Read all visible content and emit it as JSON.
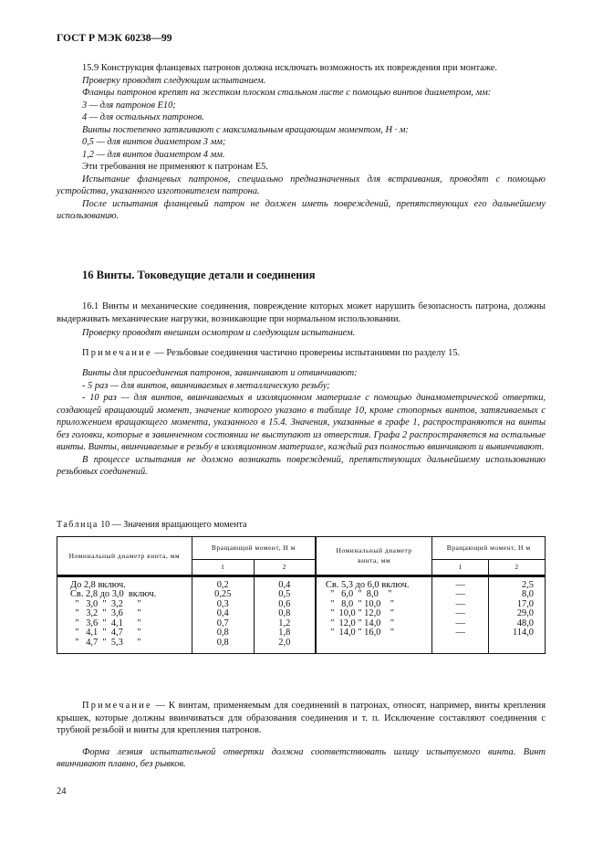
{
  "header": "ГОСТ Р МЭК 60238—99",
  "s159": [
    {
      "t": "15.9 Конструкция фланцевых патронов должна исключать возможность их повреждения при монтаже.",
      "i": false,
      "ind": true
    },
    {
      "t": "Проверку проводят следующим испытанием.",
      "i": true,
      "ind": true
    },
    {
      "t": "Фланцы патронов крепят на жестком плоском стальном листе с помощью винтов диаметром, мм:",
      "i": true,
      "ind": true
    },
    {
      "t": "3 — для патронов Е10;",
      "i": true,
      "ind": true
    },
    {
      "t": "4 — для остальных патронов.",
      "i": true,
      "ind": true
    },
    {
      "t": "Винты постепенно затягивают с максимальным вращающим моментом, Н · м:",
      "i": true,
      "ind": true
    },
    {
      "t": "0,5 — для винтов диаметром 3 мм;",
      "i": true,
      "ind": true
    },
    {
      "t": "1,2 — для винтов диаметром 4 мм.",
      "i": true,
      "ind": true
    },
    {
      "t": "Эти требования не применяют к патронам Е5.",
      "i": false,
      "ind": true
    },
    {
      "t": "Испытание фланцевых патронов, специально предназначенных для встраивания, проводят с помощью устройства, указанного изготовителем патрона.",
      "i": true,
      "ind": true
    },
    {
      "t": "После испытания фланцевый патрон не должен иметь повреждений, препятствующих его дальнейшему использованию.",
      "i": true,
      "ind": true
    }
  ],
  "s16_title": "16 Винты. Токоведущие детали и соединения",
  "s161": "16.1 Винты и механические соединения, повреждение которых может нарушить безопасность патрона, должны выдерживать механические нагрузки, возникающие при нормальном использовании.",
  "s161_check": "Проверку проводят внешним осмотром и следующим испытанием.",
  "note1_label": "Примечание",
  "note1_text": " — Резьбовые соединения частично проверены испытаниями по разделу 15.",
  "s16_body": [
    "Винты для присоединения патронов, завинчивают и отвинчивают:",
    "- 5 раз — для винтов, ввинчиваемых в металлическую резьбу;",
    "- 10 раз — для винтов, ввинчиваемых в изоляционном материале с помощью динамометрической отвертки, создающей вращающий момент, значение которого указано в таблице 10, кроме стопорных винтов, затягиваемых с приложением вращающего момента, указанного в 15.4. Значения, указанные в графе 1, распространяются на винты без головки, которые в завинченном состоянии не выступают из отверстия. Графа 2 распространяется на остальные винты. Винты, ввинчиваемые в резьбу в изоляционном материале, каждый раз полностью ввинчивают и вывинчивают.",
    "В процессе испытания не должно возникать повреждений, препятствующих дальнейшему использованию резьбовых соединений."
  ],
  "table": {
    "caption_label": "Таблица",
    "caption_text": " 10 — Значения вращающего момента",
    "h_diam": "Номинальный диаметр винта, мм",
    "h_moment": "Вращающий момент, Н   м",
    "col1": "1",
    "col2": "2",
    "left": {
      "diam": "До 2,8 включ.\nСв. 2,8 до 3,0  включ.\n  \"   3,0  \"  3,2      \"\n  \"   3,2  \"  3,6      \"\n  \"   3,6  \"  4,1      \"\n  \"   4,1  \"  4,7      \"\n  \"   4,7  \"  5,3      \"",
      "c1": "0,2\n0,25\n0,3\n0,4\n0,7\n0,8\n0,8",
      "c2": "0,4\n0,5\n0,6\n0,8\n1,2\n1,8\n2,0"
    },
    "right": {
      "diam": "Св. 5,3 до 6,0 включ.\n  \"   6,0  \"  8,0    \"\n  \"   8,0  \" 10,0    \"\n  \"  10,0 \" 12,0    \"\n  \"  12,0 \" 14,0    \"\n  \"  14,0 \" 16,0    \"",
      "c1": "—\n—\n—\n—\n—\n—",
      "c2": "2,5\n8,0\n17,0\n29,0\n48,0\n114,0"
    }
  },
  "note2_label": "Примечание",
  "note2_text": " — К винтам, применяемым для соединений в патронах, относят, например, винты крепления крышек, которые должны ввинчиваться для образования соединения и т. п. Исключение составляют соединения с трубной резьбой и винты для крепления патронов.",
  "final": "Форма лезвия испытательной отвертки должна соответствовать шлицу испытуемого винта. Винт ввинчивают плавно, без рывков.",
  "page_number": "24"
}
